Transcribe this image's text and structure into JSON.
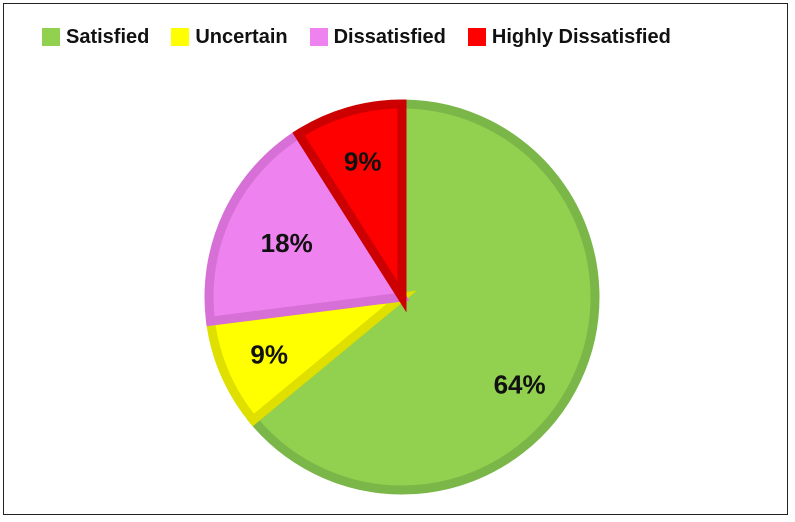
{
  "chart_data": {
    "type": "pie",
    "title": "",
    "categories": [
      "Satisfied",
      "Uncertain",
      "Dissatisfied",
      "Highly Dissatisfied"
    ],
    "values": [
      64,
      9,
      18,
      9
    ],
    "data_labels": [
      "64%",
      "9%",
      "18%",
      "9%"
    ],
    "colors": [
      "#92d050",
      "#ffff00",
      "#ee82ee",
      "#ff0000"
    ],
    "edge_colors": [
      "#7ab648",
      "#e0e000",
      "#d66fd6",
      "#cc0000"
    ],
    "legend_position": "top",
    "start_angle_deg": 0,
    "direction": "clockwise"
  }
}
